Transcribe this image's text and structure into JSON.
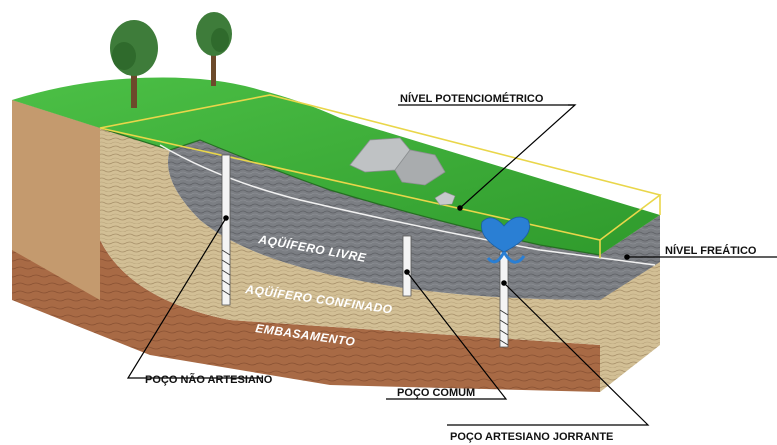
{
  "labels": {
    "potentiometric_level": "NÍVEL POTENCIOMÉTRICO",
    "water_table": "NÍVEL FREÁTICO",
    "unconfined_aquifer": "AQÜÍFERO LIVRE",
    "confined_aquifer": "AQÜÍFERO CONFINADO",
    "basement": "EMBASAMENTO",
    "non_artesian_well": "POÇO NÃO ARTESIANO",
    "common_well": "POÇO COMUM",
    "flowing_artesian_well": "POÇO ARTESIANO JORRANTE"
  },
  "colors": {
    "grass": "#3fb23a",
    "grass_dark": "#2e8f2b",
    "unconfined": "#7d7f84",
    "confined": "#c9b58c",
    "basement": "#a86a45",
    "water": "#2a7fd4",
    "potentiometric_line": "#e9d64a"
  }
}
